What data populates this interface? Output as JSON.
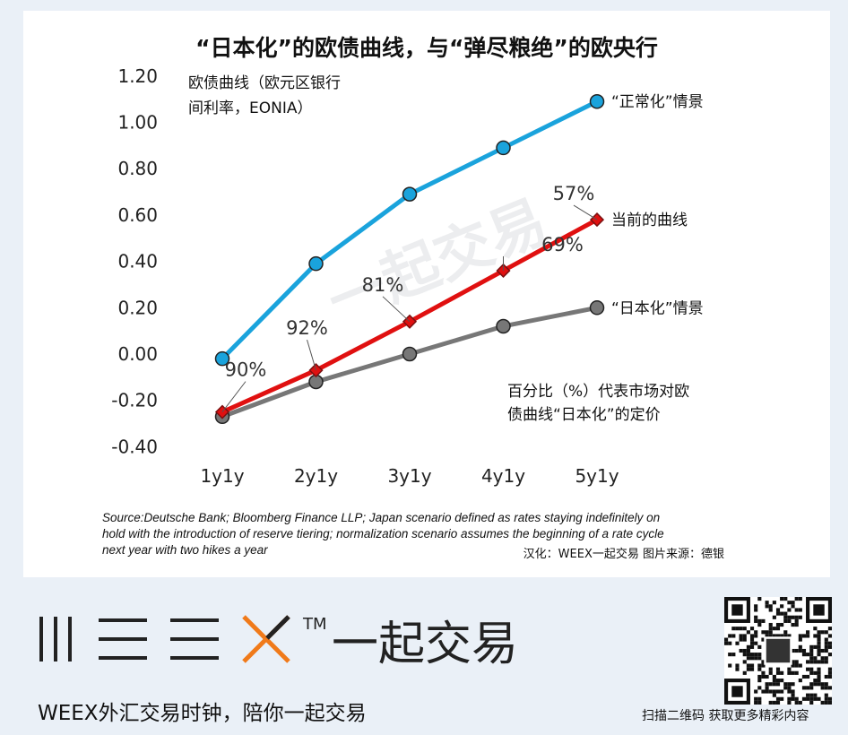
{
  "chart_data": {
    "type": "line",
    "title": "“日本化”的欧债曲线，与“弹尽粮绝”的欧央行",
    "ylabel_lines": [
      "欧债曲线（欧元区银行",
      "间利率，EONIA）"
    ],
    "categories": [
      "1y1y",
      "2y1y",
      "3y1y",
      "4y1y",
      "5y1y"
    ],
    "ylim": [
      -0.4,
      1.2
    ],
    "yticks": [
      "1.20",
      "1.00",
      "0.80",
      "0.60",
      "0.40",
      "0.20",
      "0.00",
      "-0.20",
      "-0.40"
    ],
    "series": [
      {
        "name": "“正常化”情景",
        "values": [
          -0.02,
          0.39,
          0.69,
          0.89,
          1.09
        ],
        "color": "#1aa3dc",
        "marker": "circle"
      },
      {
        "name": "当前的曲线",
        "values": [
          -0.25,
          -0.07,
          0.14,
          0.36,
          0.58
        ],
        "color": "#e01010",
        "marker": "diamond"
      },
      {
        "name": "“日本化”情景",
        "values": [
          -0.27,
          -0.12,
          0.0,
          0.12,
          0.2
        ],
        "color": "#777777",
        "marker": "circle"
      }
    ],
    "pct_labels": [
      "90%",
      "92%",
      "81%",
      "69%",
      "57%"
    ],
    "note_lines": [
      "百分比（%）代表市场对欧",
      "债曲线“日本化”的定价"
    ],
    "source_lines": [
      "Source:Deutsche Bank; Bloomberg Finance LLP; Japan scenario defined as rates staying indefinitely on",
      "hold with the introduction of reserve tiering; normalization scenario assumes the beginning of a rate cycle",
      "next year with two hikes a year"
    ],
    "credit": "汉化：WEEX一起交易  图片来源：德银",
    "watermark": "一起交易"
  },
  "footer": {
    "brand_text": "一起交易",
    "tm": "TM",
    "slogan": "WEEX外汇交易时钟，陪你一起交易",
    "qr_caption": "扫描二维码 获取更多精彩内容",
    "accent": "#f07a1a"
  }
}
